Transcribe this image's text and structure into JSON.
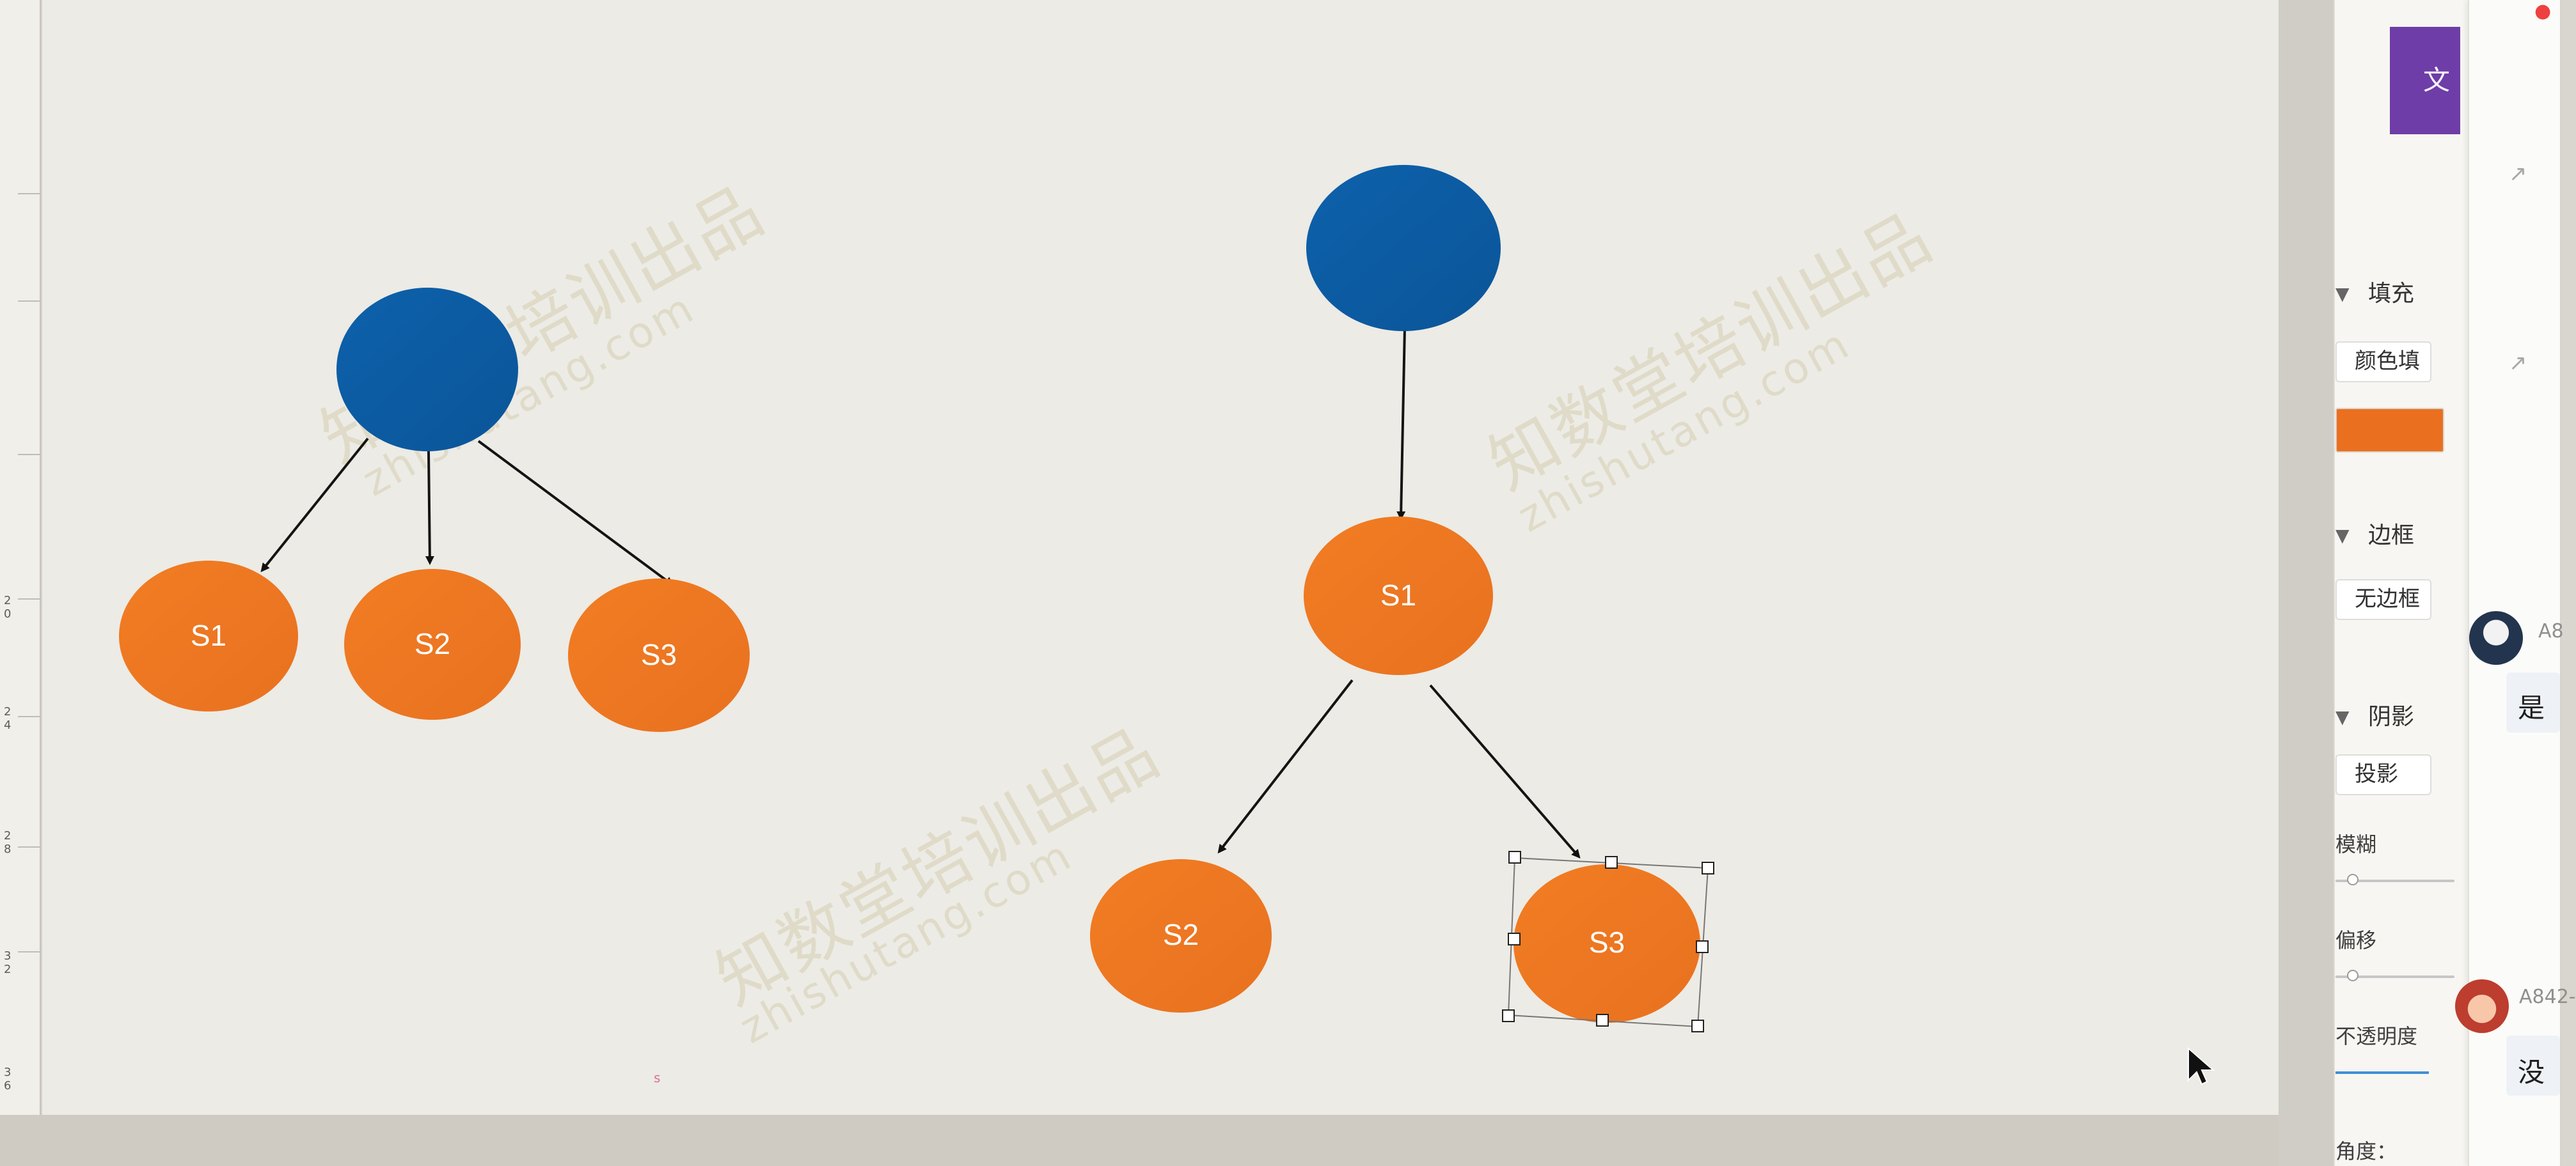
{
  "canvas": {
    "nodes": {
      "left_s1": "S1",
      "left_s2": "S2",
      "left_s3": "S3",
      "right_s1": "S1",
      "right_s2": "S2",
      "right_s3": "S3"
    },
    "watermarks": [
      {
        "main": "知数堂培训出品",
        "sub": "zhishutang.com"
      },
      {
        "main": "知数堂培训出品",
        "sub": "zhishutang.com"
      },
      {
        "main": "知数堂培训出品",
        "sub": "zhishutang.com"
      }
    ],
    "ruler": {
      "ticks": [
        "2\n0",
        "2\n4",
        "2\n8",
        "3\n2",
        "3\n6"
      ]
    },
    "colors": {
      "blue": "#0f64ad",
      "orange": "#ee7b22",
      "canvas": "#ecebe5"
    }
  },
  "panel": {
    "tab_label": "文",
    "fill": {
      "title": "填充",
      "type_value": "颜色填",
      "swatch_color": "#ea6f1f"
    },
    "border": {
      "title": "边框",
      "value": "无边框"
    },
    "shadow": {
      "title": "阴影",
      "value": "投影",
      "blur_label": "模糊",
      "offset_label": "偏移",
      "opacity_label": "不透明度",
      "angle_label": "角度："
    }
  },
  "sidebar": {
    "users": [
      {
        "label": "A8"
      },
      {
        "label": "A842-"
      }
    ],
    "chat_text_1": "是",
    "chat_text_2": "没"
  },
  "icons": {
    "cursor": "mouse-pointer-icon",
    "triangle": "triangle-down-icon",
    "badge": "notification-badge-icon",
    "small_link": "link-icon"
  }
}
